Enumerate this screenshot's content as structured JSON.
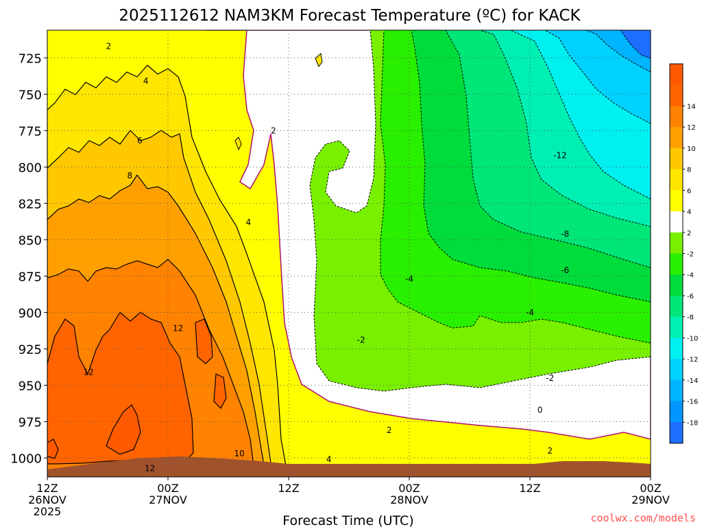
{
  "chart_data": {
    "type": "heatmap",
    "title": "2025112612 NAM3KM Forecast Temperature (ºC) for KACK",
    "xlabel": "Forecast Time (UTC)",
    "ylabel": "",
    "credit": "coolwx.com/models",
    "x_ticks": [
      {
        "hour": 0,
        "line1": "12Z",
        "line2": "26NOV",
        "line3": "2025"
      },
      {
        "hour": 12,
        "line1": "00Z",
        "line2": "27NOV",
        "line3": ""
      },
      {
        "hour": 24,
        "line1": "12Z",
        "line2": "",
        "line3": ""
      },
      {
        "hour": 36,
        "line1": "00Z",
        "line2": "28NOV",
        "line3": ""
      },
      {
        "hour": 48,
        "line1": "12Z",
        "line2": "",
        "line3": ""
      },
      {
        "hour": 60,
        "line1": "00Z",
        "line2": "29NOV",
        "line3": ""
      }
    ],
    "xlim_hours": [
      0,
      60
    ],
    "y_ticks": [
      725,
      750,
      775,
      800,
      825,
      850,
      875,
      900,
      925,
      950,
      975,
      1000
    ],
    "ylim_hpa": [
      706,
      1013
    ],
    "colorbar": {
      "levels": [
        -20,
        -18,
        -16,
        -14,
        -12,
        -10,
        -8,
        -6,
        -4,
        -2,
        2,
        4,
        6,
        8,
        10,
        12,
        14,
        16
      ],
      "tick_labels": [
        "-18",
        "-16",
        "-14",
        "-12",
        "-10",
        "-8",
        "-6",
        "-4",
        "-2",
        "2",
        "4",
        "6",
        "8",
        "10",
        "12",
        "14"
      ],
      "colors": [
        "#1e6eff",
        "#0096ff",
        "#00b4ff",
        "#00d2ff",
        "#00f0f0",
        "#00f0b4",
        "#00e678",
        "#00dc3c",
        "#28f000",
        "#78f000",
        "#ffffff",
        "#ffff00",
        "#ffe600",
        "#ffc800",
        "#ffa000",
        "#ff8200",
        "#ff6400",
        "#ff5a00"
      ]
    },
    "contour_labels": [
      {
        "text": "2",
        "hour": 6.1,
        "hpa": 717
      },
      {
        "text": "4",
        "hour": 9.8,
        "hpa": 741
      },
      {
        "text": "6",
        "hour": 9.2,
        "hpa": 782
      },
      {
        "text": "8",
        "hour": 8.2,
        "hpa": 806
      },
      {
        "text": "2",
        "hour": 22.5,
        "hpa": 775
      },
      {
        "text": "4",
        "hour": 20.0,
        "hpa": 838
      },
      {
        "text": "12",
        "hour": 13.0,
        "hpa": 911
      },
      {
        "text": "12",
        "hour": 4.1,
        "hpa": 941
      },
      {
        "text": "10",
        "hour": 19.1,
        "hpa": 997
      },
      {
        "text": "12",
        "hour": 10.2,
        "hpa": 1007
      },
      {
        "text": "-4",
        "hour": 36.0,
        "hpa": 877
      },
      {
        "text": "-2",
        "hour": 31.2,
        "hpa": 919
      },
      {
        "text": "2",
        "hour": 34.0,
        "hpa": 981
      },
      {
        "text": "4",
        "hour": 28.0,
        "hpa": 1001
      },
      {
        "text": "0",
        "hour": 49.0,
        "hpa": 967
      },
      {
        "text": "2",
        "hour": 50.0,
        "hpa": 995
      },
      {
        "text": "-2",
        "hour": 50.0,
        "hpa": 945
      },
      {
        "text": "-4",
        "hour": 48.0,
        "hpa": 900
      },
      {
        "text": "-6",
        "hour": 51.5,
        "hpa": 871
      },
      {
        "text": "-8",
        "hour": 51.5,
        "hpa": 846
      },
      {
        "text": "-12",
        "hour": 51.0,
        "hpa": 792
      }
    ]
  }
}
